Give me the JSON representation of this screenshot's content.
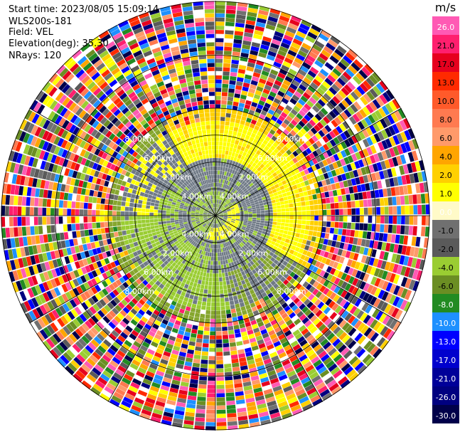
{
  "header": {
    "start_time": "Start time: 2023/08/05 15:09:14",
    "instrument": "WLS200s-181",
    "field": "Field: VEL",
    "elevation": "Elevation(deg): 35.30",
    "nrays": "NRays: 120"
  },
  "colorbar": {
    "unit": "m/s",
    "ticks": [
      "26.0",
      "21.0",
      "17.0",
      "13.0",
      "10.0",
      "8.0",
      "6.0",
      "4.0",
      "2.0",
      "1.0",
      "0.0",
      "-1.0",
      "-2.0",
      "-4.0",
      "-6.0",
      "-8.0",
      "-10.0",
      "-13.0",
      "-17.0",
      "-21.0",
      "-26.0",
      "-30.0"
    ],
    "colors": [
      "#ff5ab4",
      "#ff1f6e",
      "#e6001e",
      "#ff2a00",
      "#ff5a2a",
      "#ff7a50",
      "#ff9a6a",
      "#ffa500",
      "#ffd000",
      "#ffff00",
      "#fffac8",
      "#707070",
      "#5a5a5a",
      "#9acd32",
      "#6b8e23",
      "#228b22",
      "#1e90ff",
      "#0000ff",
      "#0000cd",
      "#000099",
      "#000080",
      "#00004a"
    ]
  },
  "chart_data": {
    "type": "heatmap",
    "field": "VEL",
    "units": "m/s",
    "nrays": 120,
    "range_rings": [
      "4.00km",
      "2.00km",
      "6.00km",
      "8.00km"
    ],
    "zones": [
      {
        "range_min_km": 0.0,
        "range_max_km": 1.0,
        "dominant": "gray/green core with yellow swirl",
        "values": [
          -2.0,
          0.0,
          2.0
        ]
      },
      {
        "range_min_km": 1.0,
        "range_max_km": 2.0,
        "dominant": "gray ring",
        "values": [
          0.0,
          -1.0
        ]
      },
      {
        "range_min_km": 2.0,
        "range_max_km": 4.0,
        "dominant": "yellow north-east / olive south-west",
        "values": [
          2.0,
          4.0,
          -2.0,
          -4.0
        ]
      },
      {
        "range_min_km": 4.0,
        "range_max_km": 8.0,
        "dominant": "noise (full colour range)",
        "values": [
          -30.0,
          26.0
        ]
      }
    ]
  }
}
